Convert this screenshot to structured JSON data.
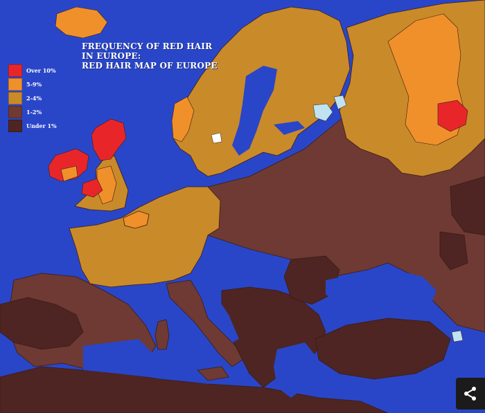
{
  "title": {
    "line1": "FREQUENCY OF RED HAIR",
    "line2": "IN EUROPE:",
    "line3": "RED HAIR MAP OF EUROPE"
  },
  "legend": [
    {
      "label": "Over 10%",
      "color": "#e8262a"
    },
    {
      "label": "5-9%",
      "color": "#f0902a"
    },
    {
      "label": "2-4%",
      "color": "#c98a2a"
    },
    {
      "label": "1-2%",
      "color": "#6e3a33"
    },
    {
      "label": "Under 1%",
      "color": "#4e2522"
    }
  ],
  "colors": {
    "sea": "#2a46c8",
    "lake": "#bfe3f0",
    "border": "#3a1a16"
  },
  "share_icon": "share-icon"
}
